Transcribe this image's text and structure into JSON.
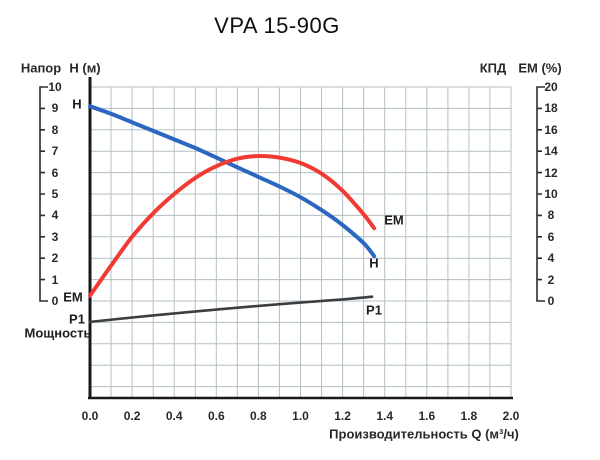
{
  "title": "VPA 15-90G",
  "labels": {
    "napor": "Напор",
    "h_unit": "H (м)",
    "kpd": "КПД",
    "em_unit": "EM (%)",
    "h_start": "H",
    "em_start": "EM",
    "p1_left": "P1",
    "power": "Мощность",
    "em_end": "EM",
    "h_end": "H",
    "p1_end": "P1",
    "x_title": "Производительность  Q  (м³/ч)"
  },
  "chart_data": {
    "type": "line",
    "title": "VPA 15-90G",
    "grid": true,
    "x_axis": {
      "label": "Производительность Q (м³/ч)",
      "range": [
        0.0,
        2.0
      ],
      "ticks": [
        "0.0",
        "0.2",
        "0.4",
        "0.6",
        "0.8",
        "1.0",
        "1.2",
        "1.4",
        "1.6",
        "1.8",
        "2.0"
      ]
    },
    "left_axis": {
      "name": "Напор",
      "unit": "H (м)",
      "range": [
        0,
        10
      ],
      "ticks": [
        "10",
        "9",
        "8",
        "7",
        "6",
        "5",
        "4",
        "3",
        "2",
        "1",
        "0"
      ]
    },
    "right_axis": {
      "name": "КПД",
      "unit": "EM (%)",
      "range": [
        0,
        20
      ],
      "ticks": [
        "20",
        "18",
        "16",
        "14",
        "12",
        "10",
        "8",
        "6",
        "4",
        "2",
        "0"
      ]
    },
    "series": [
      {
        "name": "H",
        "axis": "left",
        "color": "#2b67c0",
        "points": [
          [
            0,
            9.1
          ],
          [
            0.1,
            8.75
          ],
          [
            0.2,
            8.35
          ],
          [
            0.3,
            7.95
          ],
          [
            0.4,
            7.55
          ],
          [
            0.5,
            7.15
          ],
          [
            0.6,
            6.7
          ],
          [
            0.7,
            6.25
          ],
          [
            0.8,
            5.8
          ],
          [
            0.9,
            5.35
          ],
          [
            1.0,
            4.85
          ],
          [
            1.1,
            4.25
          ],
          [
            1.2,
            3.55
          ],
          [
            1.3,
            2.7
          ],
          [
            1.35,
            2.1
          ]
        ]
      },
      {
        "name": "EM",
        "axis": "right",
        "color": "#ef3b33",
        "points": [
          [
            0,
            0.5
          ],
          [
            0.1,
            3.3
          ],
          [
            0.2,
            6.0
          ],
          [
            0.3,
            8.2
          ],
          [
            0.4,
            10.0
          ],
          [
            0.5,
            11.5
          ],
          [
            0.6,
            12.6
          ],
          [
            0.7,
            13.3
          ],
          [
            0.8,
            13.55
          ],
          [
            0.9,
            13.4
          ],
          [
            1.0,
            12.9
          ],
          [
            1.1,
            11.9
          ],
          [
            1.2,
            10.3
          ],
          [
            1.3,
            8.1
          ],
          [
            1.35,
            6.8
          ]
        ]
      },
      {
        "name": "P1",
        "axis": "right-relative",
        "color": "#3b3f42",
        "note": "power curve shown without numeric scale, plotted below zero line",
        "points": [
          [
            0,
            -1.95
          ],
          [
            0.3,
            -1.35
          ],
          [
            0.6,
            -0.8
          ],
          [
            0.9,
            -0.3
          ],
          [
            1.2,
            0.15
          ],
          [
            1.34,
            0.4
          ]
        ]
      }
    ]
  }
}
